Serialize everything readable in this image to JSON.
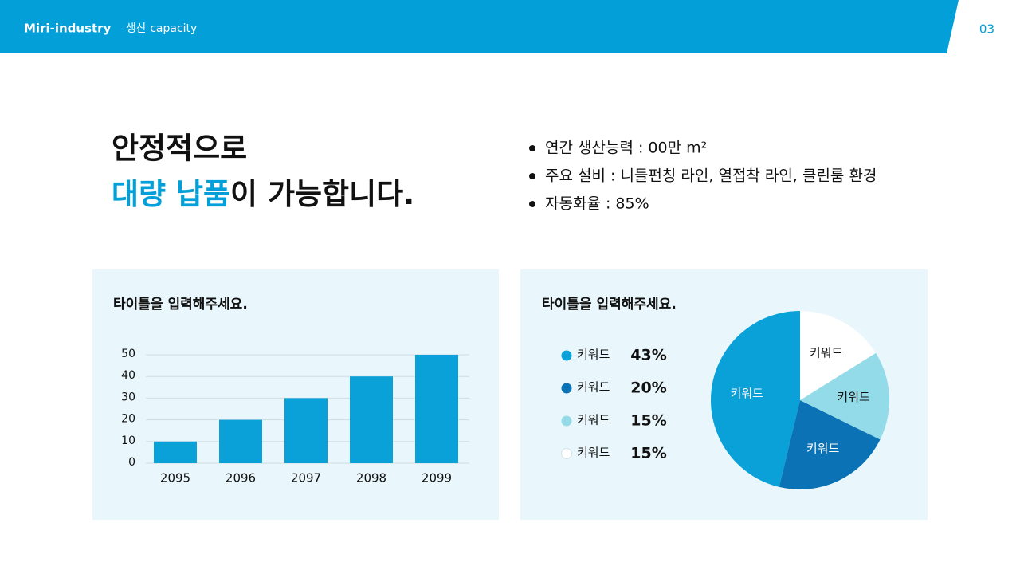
{
  "header": {
    "brand": "Miri-industry",
    "section": "생산 capacity",
    "page": "03"
  },
  "headline": {
    "line1": "안정적으로",
    "highlight": "대량 납품",
    "rest": "이 가능합니다."
  },
  "bullets": [
    "연간 생산능력 : 00만 m²",
    "주요 설비 : 니들펀칭 라인, 열접착 라인, 클린룸 환경",
    "자동화율 : 85%"
  ],
  "chart_data": [
    {
      "type": "bar",
      "title": "타이틀을 입력해주세요.",
      "categories": [
        "2095",
        "2096",
        "2097",
        "2098",
        "2099"
      ],
      "values": [
        10,
        20,
        30,
        40,
        50
      ],
      "color": "#0aa0d8",
      "ylim": [
        0,
        50
      ],
      "yticks": [
        0,
        10,
        20,
        30,
        40,
        50
      ],
      "grid": true
    },
    {
      "type": "pie",
      "title": "타이틀을 입력해주세요.",
      "categories": [
        "키워드",
        "키워드",
        "키워드",
        "키워드"
      ],
      "values": [
        43,
        20,
        15,
        15
      ],
      "value_labels": [
        "43%",
        "20%",
        "15%",
        "15%"
      ],
      "colors": [
        "#0aa0d8",
        "#0a72b5",
        "#93dbe9",
        "#ffffff"
      ]
    }
  ]
}
